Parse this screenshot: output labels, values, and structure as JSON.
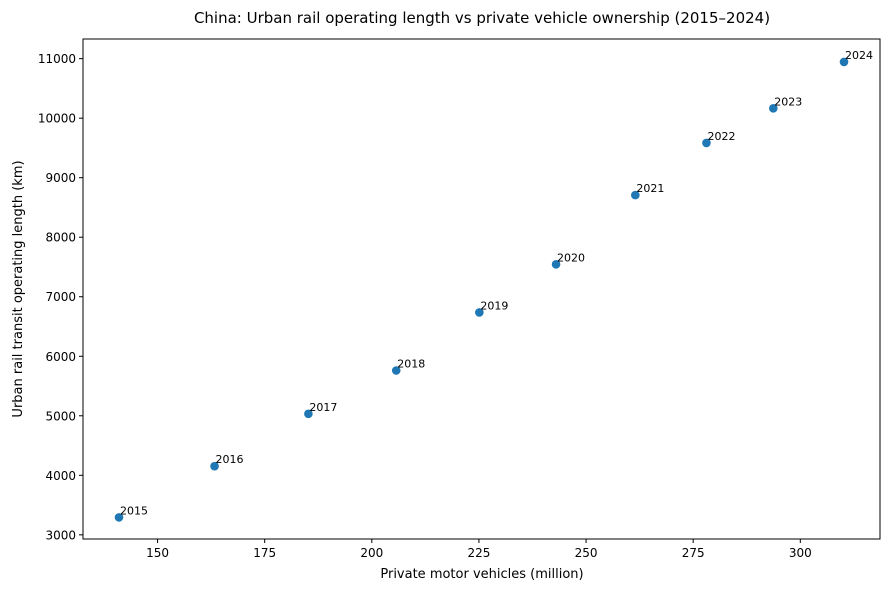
{
  "chart_data": {
    "type": "scatter",
    "title": "China: Urban rail operating length vs private vehicle ownership (2015–2024)",
    "xlabel": "Private motor vehicles (million)",
    "ylabel": "Urban rail transit operating length (km)",
    "xlim": [
      132.6,
      318.6
    ],
    "ylim": [
      2930,
      11330
    ],
    "xticks": [
      150,
      175,
      200,
      225,
      250,
      275,
      300
    ],
    "yticks": [
      3000,
      4000,
      5000,
      6000,
      7000,
      8000,
      9000,
      10000,
      11000
    ],
    "grid": false,
    "marker_color": "#1f77b4",
    "points": [
      {
        "label": "2015",
        "x": 141.0,
        "y": 3293
      },
      {
        "label": "2016",
        "x": 163.3,
        "y": 4153
      },
      {
        "label": "2017",
        "x": 185.2,
        "y": 5033
      },
      {
        "label": "2018",
        "x": 205.7,
        "y": 5761
      },
      {
        "label": "2019",
        "x": 225.1,
        "y": 6736
      },
      {
        "label": "2020",
        "x": 243.0,
        "y": 7545
      },
      {
        "label": "2021",
        "x": 261.5,
        "y": 8708
      },
      {
        "label": "2022",
        "x": 278.1,
        "y": 9584
      },
      {
        "label": "2023",
        "x": 293.7,
        "y": 10165
      },
      {
        "label": "2024",
        "x": 310.2,
        "y": 10945
      }
    ]
  }
}
